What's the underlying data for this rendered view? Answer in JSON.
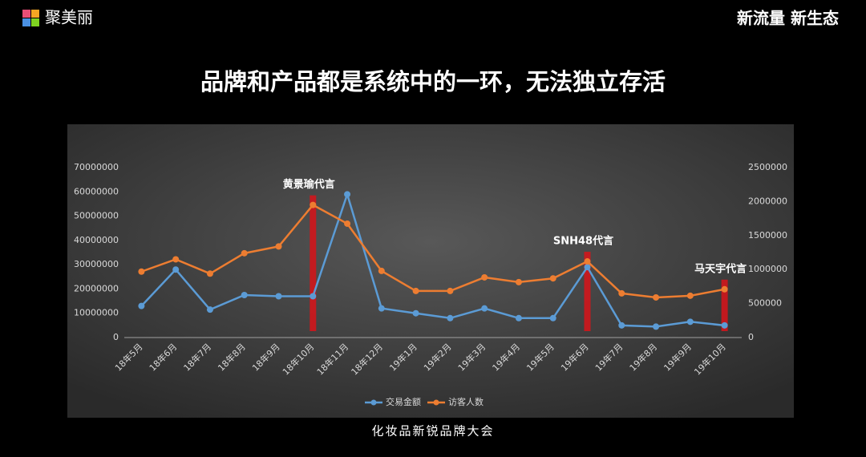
{
  "header": {
    "logo": "聚美丽",
    "slogan": "新流量 新生态"
  },
  "footer": "化妆品新锐品牌大会",
  "chart_data": {
    "type": "line",
    "title": "品牌和产品都是系统中的一环，无法独立存活",
    "categories": [
      "18年5月",
      "18年6月",
      "18年7月",
      "18年8月",
      "18年9月",
      "18年10月",
      "18年11月",
      "18年12月",
      "19年1月",
      "19年2月",
      "19年3月",
      "19年4月",
      "19年5月",
      "19年6月",
      "19年7月",
      "19年8月",
      "19年9月",
      "19年10月"
    ],
    "series": [
      {
        "name": "交易金额",
        "color": "#5b9bd5",
        "values": [
          13000000,
          28000000,
          11500000,
          17500000,
          17000000,
          17000000,
          59000000,
          12000000,
          10000000,
          8000000,
          12000000,
          8000000,
          8000000,
          29000000,
          5000000,
          4500000,
          6500000,
          5000000
        ]
      },
      {
        "name": "访客人数",
        "color": "#ed7d31",
        "axis": "y2",
        "values": [
          970000,
          1150000,
          940000,
          1240000,
          1340000,
          1950000,
          1675000,
          980000,
          685000,
          685000,
          885000,
          815000,
          870000,
          1120000,
          650000,
          590000,
          615000,
          710000
        ]
      }
    ],
    "ylim": [
      0,
      70000000
    ],
    "yticks": [
      0,
      10000000,
      20000000,
      30000000,
      40000000,
      50000000,
      60000000,
      70000000
    ],
    "y2lim": [
      0,
      2500000
    ],
    "y2ticks": [
      0,
      500000,
      1000000,
      1500000,
      2000000,
      2500000
    ],
    "annotations": [
      {
        "text": "黄景瑜代言",
        "x": "18年10月"
      },
      {
        "text": "SNH48代言",
        "x": "19年6月"
      },
      {
        "text": "马天宇代言",
        "x": "19年10月"
      }
    ],
    "legend": "bottom"
  }
}
